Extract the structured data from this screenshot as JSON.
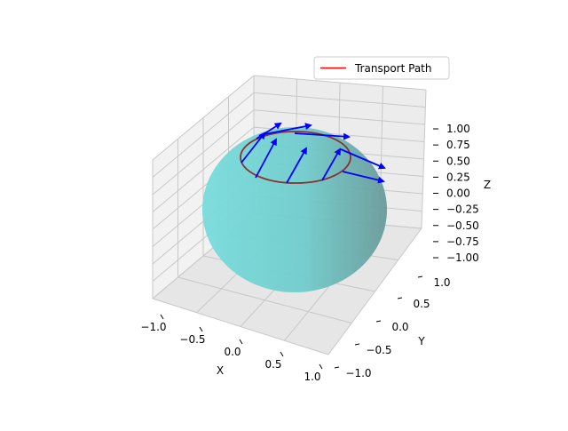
{
  "chart_data": {
    "type": "3d-surface-quiver",
    "xlabel": "X",
    "ylabel": "Y",
    "zlabel": "Z",
    "xlim": [
      -1.0,
      1.0
    ],
    "ylim": [
      -1.0,
      1.0
    ],
    "zlim": [
      -1.0,
      1.0
    ],
    "x_ticks": [
      "−1.0",
      "−0.5",
      "0.0",
      "0.5",
      "1.0"
    ],
    "y_ticks": [
      "−1.0",
      "−0.5",
      "0.0",
      "0.5",
      "1.0"
    ],
    "z_ticks": [
      "−1.00",
      "−0.75",
      "−0.50",
      "−0.25",
      "0.00",
      "0.25",
      "0.50",
      "0.75",
      "1.00"
    ],
    "grid": true,
    "legend": {
      "placement": "top-right",
      "entries": [
        {
          "label": "Transport Path",
          "color": "#ff0000"
        }
      ]
    },
    "surface": {
      "shape": "unit sphere",
      "radius": 1.0,
      "color": "#66d9d9"
    },
    "path": {
      "latitude_z": 0.5,
      "radius": 0.866,
      "color": "#ff0000"
    },
    "vectors": {
      "color": "#0000ff",
      "count": 8
    }
  }
}
